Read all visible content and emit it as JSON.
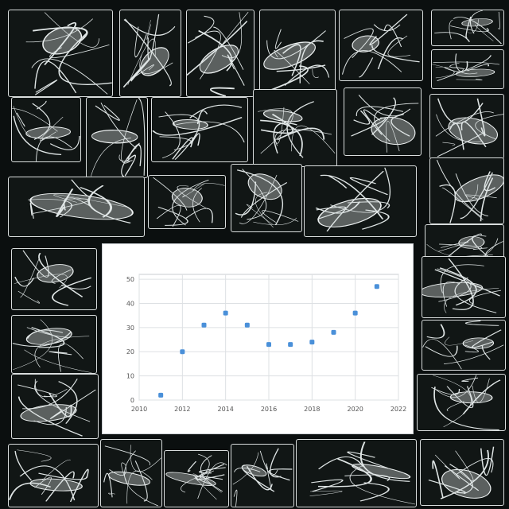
{
  "chart_data": {
    "type": "scatter",
    "title": "",
    "subtitle": "",
    "xlabel": "",
    "ylabel": "",
    "x": [
      2011,
      2012,
      2013,
      2014,
      2015,
      2016,
      2017,
      2018,
      2019,
      2020,
      2021
    ],
    "y": [
      2,
      20,
      31,
      36,
      31,
      23,
      23,
      24,
      28,
      36,
      47
    ],
    "xlim": [
      2010,
      2022
    ],
    "ylim": [
      0,
      52
    ],
    "xticks": [
      2010,
      2012,
      2014,
      2016,
      2018,
      2020,
      2022
    ],
    "yticks": [
      0,
      10,
      20,
      30,
      40,
      50
    ],
    "grid": true,
    "point_color": "#4a90d9"
  },
  "background_art": "panels of white line-drawing specimen illustrations on a black background"
}
